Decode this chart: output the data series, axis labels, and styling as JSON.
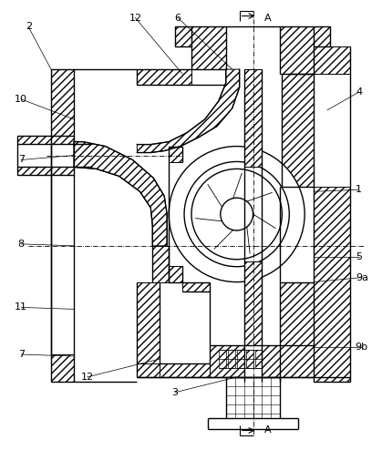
{
  "bg_color": "#ffffff",
  "line_color": "#000000",
  "figsize": [
    4.19,
    4.94
  ],
  "dpi": 100,
  "hatch": "////",
  "labels": [
    [
      "2",
      30,
      25
    ],
    [
      "12",
      148,
      18
    ],
    [
      "6",
      193,
      18
    ],
    [
      "10",
      28,
      115
    ],
    [
      "7",
      28,
      175
    ],
    [
      "8",
      28,
      270
    ],
    [
      "7",
      28,
      388
    ],
    [
      "11",
      28,
      340
    ],
    [
      "12",
      105,
      415
    ],
    [
      "3",
      195,
      430
    ],
    [
      "A",
      310,
      18
    ],
    [
      "4",
      385,
      100
    ],
    [
      "1",
      385,
      205
    ],
    [
      "5",
      385,
      285
    ],
    [
      "9a",
      390,
      305
    ],
    [
      "9b",
      390,
      385
    ],
    [
      "A",
      310,
      468
    ]
  ]
}
